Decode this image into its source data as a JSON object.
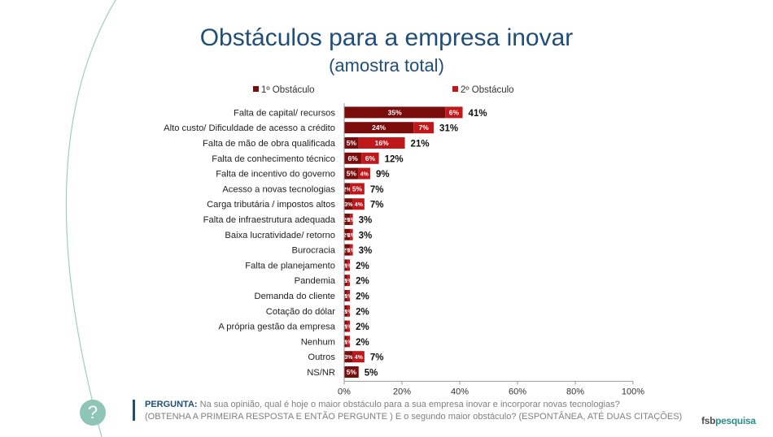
{
  "header": {
    "title": "Obstáculos para a empresa inovar",
    "subtitle": "(amostra total)"
  },
  "chart_data": {
    "type": "bar",
    "stacked": true,
    "orientation": "horizontal",
    "categories": [
      "Falta de capital/ recursos",
      "Alto custo/ Dificuldade de acesso a crédito",
      "Falta de mão de obra qualificada",
      "Falta de conhecimento técnico",
      "Falta de incentivo do governo",
      "Acesso a novas tecnologias",
      "Carga tributária / impostos altos",
      "Falta de infraestrutura adequada",
      "Baixa lucratividade/ retorno",
      "Burocracia",
      "Falta de planejamento",
      "Pandemia",
      "Demanda do cliente",
      "Cotação do dólar",
      "A própria gestão da empresa",
      "Nenhum",
      "Outros",
      "NS/NR"
    ],
    "series": [
      {
        "name": "1º Obstáculo",
        "color": "#7b0c0c",
        "values": [
          35,
          24,
          5,
          6,
          5,
          2,
          3,
          2,
          2,
          2,
          1,
          1,
          1,
          1,
          1,
          1,
          3,
          5
        ],
        "labels": [
          "35%",
          "24%",
          "5%",
          "6%",
          "5%",
          "2%",
          "3%",
          "2%",
          "2%",
          "2%",
          "1%",
          "1%",
          "1%",
          "1%",
          "1%",
          "1%",
          "3%",
          "5%"
        ]
      },
      {
        "name": "2º Obstáculo",
        "color": "#c0171b",
        "values": [
          6,
          7,
          16,
          6,
          4,
          5,
          4,
          1,
          1,
          1,
          1,
          1,
          1,
          1,
          1,
          1,
          4,
          0
        ],
        "labels": [
          "6%",
          "7%",
          "16%",
          "6%",
          "4%",
          "5%",
          "4%",
          "1%",
          "1%",
          "1%",
          "1%",
          "1%",
          "1%",
          "1%",
          "1%",
          "1%",
          "4%",
          ""
        ]
      }
    ],
    "totals": [
      "41%",
      "31%",
      "21%",
      "12%",
      "9%",
      "7%",
      "7%",
      "3%",
      "3%",
      "3%",
      "2%",
      "2%",
      "2%",
      "2%",
      "2%",
      "2%",
      "7%",
      "5%"
    ],
    "xlim": [
      0,
      100
    ],
    "xticks": [
      "0%",
      "20%",
      "40%",
      "60%",
      "80%",
      "100%"
    ],
    "legend": "top",
    "grid": false
  },
  "footer": {
    "question_label": "PERGUNTA:",
    "question_text": "Na sua opinião, qual é hoje o maior obstáculo para a sua empresa inovar e incorporar novas tecnologias?",
    "question_note": "(OBTENHA A PRIMEIRA RESPOSTA E ENTÃO PERGUNTE ) E o segundo maior obstáculo? (ESPONTÂNEA, ATÉ DUAS CITAÇÕES)",
    "question_icon": "?",
    "logo_a": "fsb",
    "logo_b": "pesquisa"
  }
}
